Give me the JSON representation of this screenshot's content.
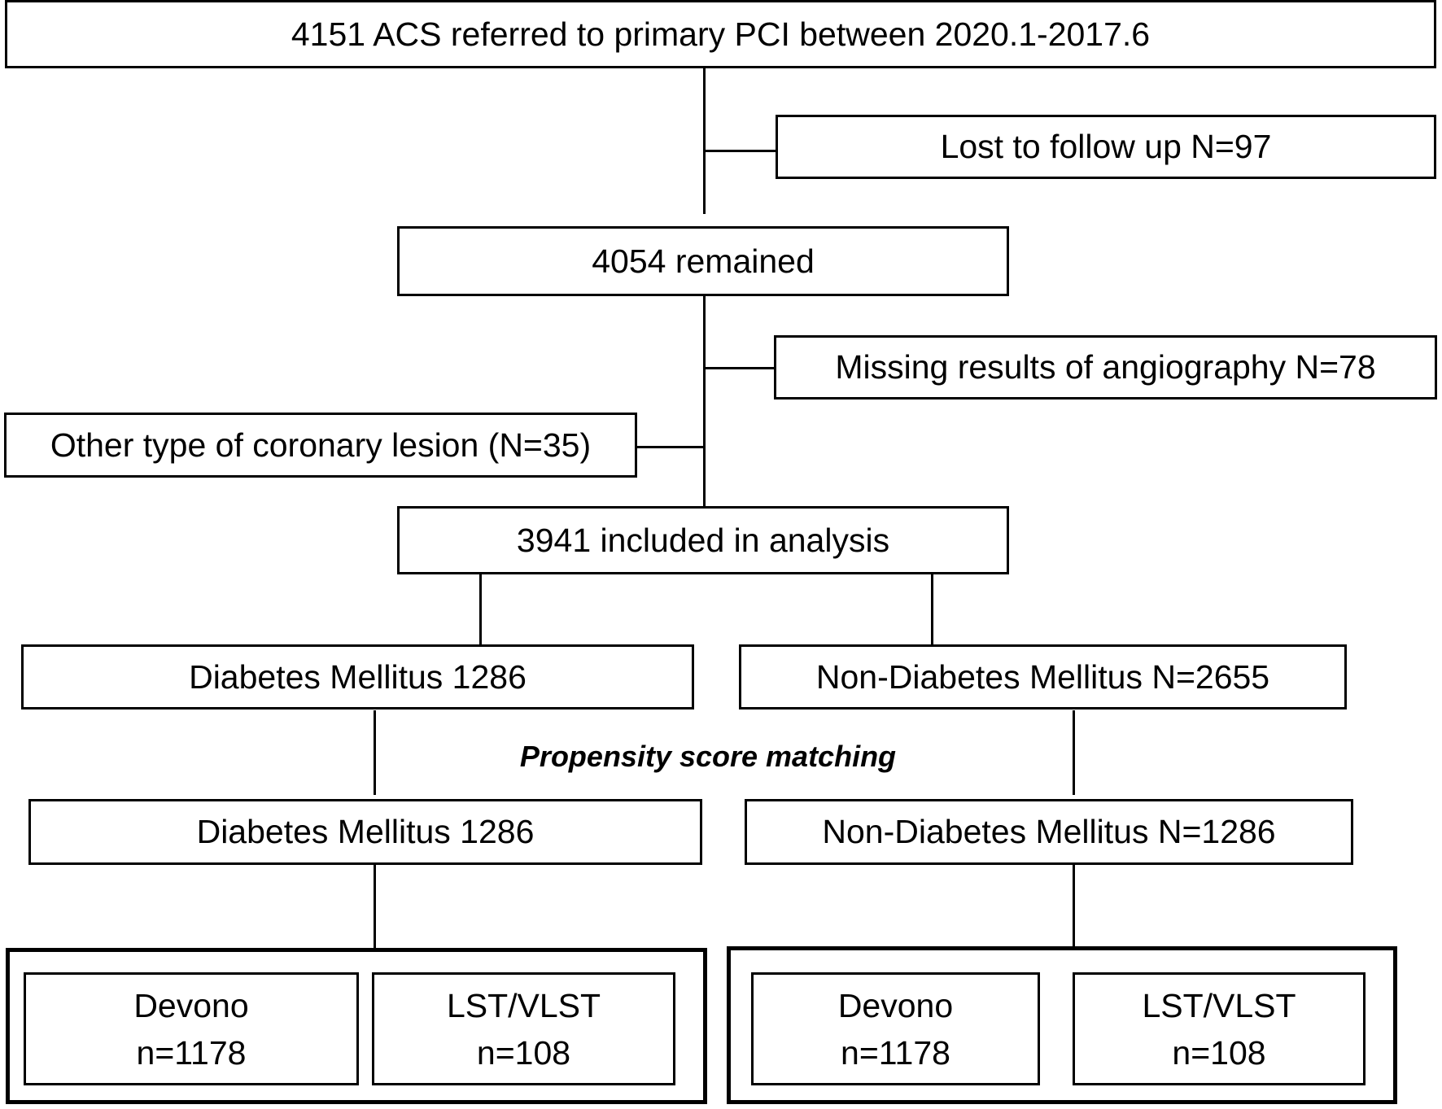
{
  "nodes": {
    "start": "4151 ACS referred to primary PCI between 2020.1-2017.6",
    "lost": "Lost to follow up N=97",
    "remained": "4054 remained",
    "missing": "Missing results of angiography N=78",
    "other_lesion": "Other type of coronary lesion (N=35)",
    "included": "3941 included in analysis",
    "dm": "Diabetes Mellitus 1286",
    "non_dm": "Non-Diabetes Mellitus N=2655",
    "psm_label": "Propensity score matching",
    "dm_matched": "Diabetes Mellitus 1286",
    "non_dm_matched": "Non-Diabetes Mellitus N=1286"
  },
  "outcomes": {
    "left": [
      {
        "name": "Devono",
        "n": "n=1178"
      },
      {
        "name": "LST/VLST",
        "n": "n=108"
      }
    ],
    "right": [
      {
        "name": "Devono",
        "n": "n=1178"
      },
      {
        "name": "LST/VLST",
        "n": "n=108"
      }
    ]
  }
}
